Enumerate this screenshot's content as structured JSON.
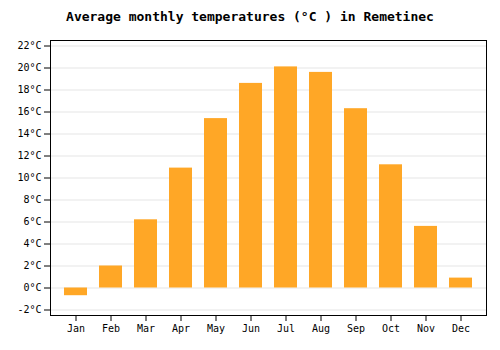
{
  "chart_data": {
    "type": "bar",
    "title": "Average monthly temperatures (°C ) in Remetinec",
    "categories": [
      "Jan",
      "Feb",
      "Mar",
      "Apr",
      "May",
      "Jun",
      "Jul",
      "Aug",
      "Sep",
      "Oct",
      "Nov",
      "Dec"
    ],
    "values": [
      -0.7,
      2.0,
      6.2,
      10.9,
      15.4,
      18.6,
      20.1,
      19.6,
      16.3,
      11.2,
      5.6,
      0.9
    ],
    "color": "#FFA726",
    "ylim": [
      -2.5,
      22.5
    ],
    "yticks": [
      {
        "value": -2,
        "label": "-2°C"
      },
      {
        "value": 0,
        "label": "0°C"
      },
      {
        "value": 2,
        "label": "2°C"
      },
      {
        "value": 4,
        "label": "4°C"
      },
      {
        "value": 6,
        "label": "6°C"
      },
      {
        "value": 8,
        "label": "8°C"
      },
      {
        "value": 10,
        "label": "10°C"
      },
      {
        "value": 12,
        "label": "12°C"
      },
      {
        "value": 14,
        "label": "14°C"
      },
      {
        "value": 16,
        "label": "16°C"
      },
      {
        "value": 18,
        "label": "18°C"
      },
      {
        "value": 20,
        "label": "20°C"
      },
      {
        "value": 22,
        "label": "22°C"
      }
    ],
    "grid": true
  }
}
